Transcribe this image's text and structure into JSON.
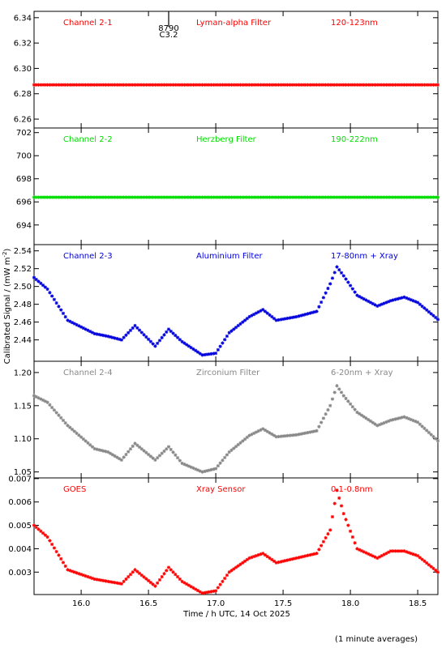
{
  "x_axis": {
    "label": "Time / h UTC, 14 Oct 2025",
    "ticks": [
      "16.0",
      "16.5",
      "17.0",
      "17.5",
      "18.0",
      "18.5"
    ],
    "range": [
      15.65,
      18.65
    ]
  },
  "y_axis_label": "Calibrated Signal / (mW m",
  "y_axis_label_sup": "-2",
  "y_axis_label_close": ")",
  "footnote": "(1 minute averages)",
  "flare_marker": {
    "line1": "8790",
    "line2": "C3.2",
    "time": 16.65
  },
  "chart_data": [
    {
      "type": "scatter",
      "title": "Channel 2-1",
      "filter": "Lyman-alpha Filter",
      "band": "120-123nm",
      "color": "#ff0000",
      "ylim": [
        6.253,
        6.345
      ],
      "yticks": [
        "6.26",
        "6.28",
        "6.30",
        "6.32",
        "6.34"
      ],
      "x": [
        15.65,
        16.0,
        16.5,
        17.0,
        17.5,
        18.0,
        18.65
      ],
      "y": [
        6.287,
        6.287,
        6.287,
        6.287,
        6.287,
        6.287,
        6.287
      ]
    },
    {
      "type": "scatter",
      "title": "Channel 2-2",
      "filter": "Herzberg Filter",
      "band": "190-222nm",
      "color": "#00dd00",
      "ylim": [
        692.3,
        702.4
      ],
      "yticks": [
        "694",
        "696",
        "698",
        "700",
        "702"
      ],
      "x": [
        15.65,
        16.0,
        16.5,
        17.0,
        17.5,
        18.0,
        18.65
      ],
      "y": [
        696.4,
        696.4,
        696.4,
        696.4,
        696.4,
        696.4,
        696.4
      ]
    },
    {
      "type": "scatter",
      "title": "Channel 2-3",
      "filter": "Aluminium Filter",
      "band": "17-80nm + Xray",
      "color": "#0000dd",
      "ylim": [
        2.416,
        2.547
      ],
      "yticks": [
        "2.44",
        "2.46",
        "2.48",
        "2.50",
        "2.52",
        "2.54"
      ],
      "x": [
        15.65,
        15.75,
        15.9,
        16.1,
        16.2,
        16.3,
        16.4,
        16.55,
        16.65,
        16.75,
        16.9,
        17.0,
        17.1,
        17.25,
        17.35,
        17.45,
        17.6,
        17.75,
        17.85,
        17.9,
        17.95,
        18.05,
        18.2,
        18.3,
        18.4,
        18.5,
        18.65
      ],
      "y": [
        2.51,
        2.497,
        2.462,
        2.447,
        2.444,
        2.44,
        2.456,
        2.433,
        2.452,
        2.438,
        2.423,
        2.425,
        2.448,
        2.466,
        2.474,
        2.462,
        2.466,
        2.472,
        2.503,
        2.522,
        2.512,
        2.49,
        2.478,
        2.484,
        2.488,
        2.482,
        2.463
      ]
    },
    {
      "type": "scatter",
      "title": "Channel 2-4",
      "filter": "Zirconium Filter",
      "band": "6-20nm + Xray",
      "color": "#888888",
      "ylim": [
        1.041,
        1.217
      ],
      "yticks": [
        "1.05",
        "1.10",
        "1.15",
        "1.20"
      ],
      "x": [
        15.65,
        15.75,
        15.9,
        16.1,
        16.2,
        16.3,
        16.4,
        16.55,
        16.65,
        16.75,
        16.9,
        17.0,
        17.1,
        17.25,
        17.35,
        17.45,
        17.6,
        17.75,
        17.85,
        17.9,
        17.95,
        18.05,
        18.2,
        18.3,
        18.4,
        18.5,
        18.65
      ],
      "y": [
        1.165,
        1.155,
        1.12,
        1.085,
        1.08,
        1.068,
        1.093,
        1.068,
        1.088,
        1.063,
        1.05,
        1.055,
        1.08,
        1.105,
        1.115,
        1.103,
        1.106,
        1.112,
        1.15,
        1.18,
        1.165,
        1.14,
        1.12,
        1.128,
        1.133,
        1.125,
        1.097
      ]
    },
    {
      "type": "scatter",
      "title": "GOES",
      "filter": "Xray Sensor",
      "band": "0.1-0.8nm",
      "color": "#ff0000",
      "ylim": [
        0.00204,
        0.00703
      ],
      "yticks": [
        "0.003",
        "0.004",
        "0.005",
        "0.006",
        "0.007"
      ],
      "x": [
        15.65,
        15.75,
        15.9,
        16.1,
        16.2,
        16.3,
        16.4,
        16.55,
        16.65,
        16.75,
        16.9,
        17.0,
        17.1,
        17.25,
        17.35,
        17.45,
        17.6,
        17.75,
        17.85,
        17.9,
        17.95,
        18.05,
        18.2,
        18.3,
        18.4,
        18.5,
        18.65
      ],
      "y": [
        0.005,
        0.0045,
        0.0031,
        0.0027,
        0.0026,
        0.0025,
        0.0031,
        0.0024,
        0.0032,
        0.0026,
        0.0021,
        0.0022,
        0.003,
        0.0036,
        0.0038,
        0.0034,
        0.0036,
        0.0038,
        0.0048,
        0.0065,
        0.0055,
        0.004,
        0.0036,
        0.0039,
        0.0039,
        0.0037,
        0.003
      ]
    }
  ]
}
